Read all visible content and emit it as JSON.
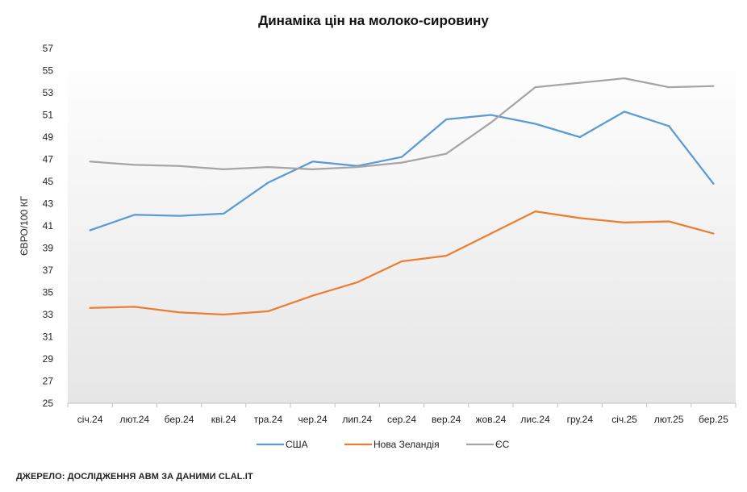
{
  "chart_data": {
    "type": "line",
    "title": "Динаміка цін на молоко-сировину",
    "ylabel": "ЄВРО/100 КГ",
    "xlabel": "",
    "ylim": [
      25,
      57
    ],
    "yticks": [
      25,
      27,
      29,
      31,
      33,
      35,
      37,
      39,
      41,
      43,
      45,
      47,
      49,
      51,
      53,
      55,
      57
    ],
    "categories": [
      "січ.24",
      "лют.24",
      "бер.24",
      "кві.24",
      "тра.24",
      "чер.24",
      "лип.24",
      "сер.24",
      "вер.24",
      "жов.24",
      "лис.24",
      "гру.24",
      "січ.25",
      "лют.25",
      "бер.25"
    ],
    "grid": false,
    "legend_position": "bottom",
    "series": [
      {
        "name": "США",
        "color": "#5b9bd5",
        "values": [
          40.6,
          42.0,
          41.9,
          42.1,
          44.9,
          46.8,
          46.4,
          47.2,
          50.6,
          51.0,
          50.2,
          49.0,
          51.3,
          50.0,
          44.8
        ]
      },
      {
        "name": "Нова Зеландія",
        "color": "#ed7d31",
        "values": [
          33.6,
          33.7,
          33.2,
          33.0,
          33.3,
          34.7,
          35.9,
          37.8,
          38.3,
          40.3,
          42.3,
          41.7,
          41.3,
          41.4,
          40.3
        ]
      },
      {
        "name": "ЄС",
        "color": "#a5a5a5",
        "values": [
          46.8,
          46.5,
          46.4,
          46.1,
          46.3,
          46.1,
          46.3,
          46.7,
          47.5,
          50.3,
          53.5,
          53.9,
          54.3,
          53.5,
          53.6
        ]
      }
    ]
  },
  "footer": {
    "source": "ДЖЕРЕЛО: ДОСЛІДЖЕННЯ АВМ ЗА ДАНИМИ CLAL.IT"
  }
}
